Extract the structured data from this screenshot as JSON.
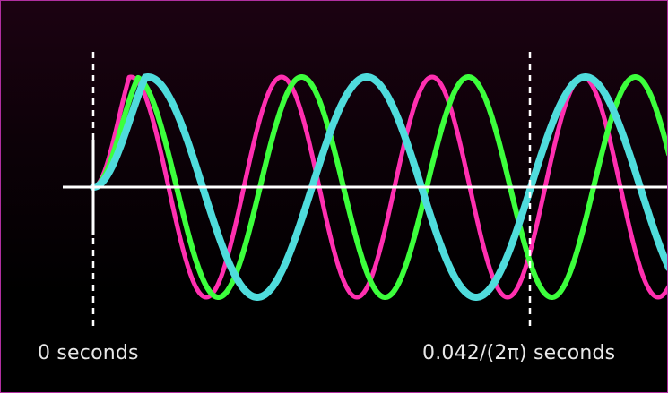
{
  "labels": {
    "start": "0 seconds",
    "end": "0.042/(2π) seconds"
  },
  "waves": [
    {
      "color": "#ff2fb0",
      "half_period": 84,
      "phase_start": 103,
      "onset": 40,
      "thickness": 5
    },
    {
      "color": "#3cff3c",
      "half_period": 93,
      "phase_start": 103,
      "onset": 50,
      "thickness": 6
    },
    {
      "color": "#4fdcdc",
      "half_period": 122,
      "phase_start": 103,
      "onset": 58,
      "thickness": 8
    }
  ],
  "colors": {
    "axis": "#ffffff",
    "background_top": "#1c0212",
    "background_bottom": "#000000",
    "border": "#b02fa0"
  }
}
